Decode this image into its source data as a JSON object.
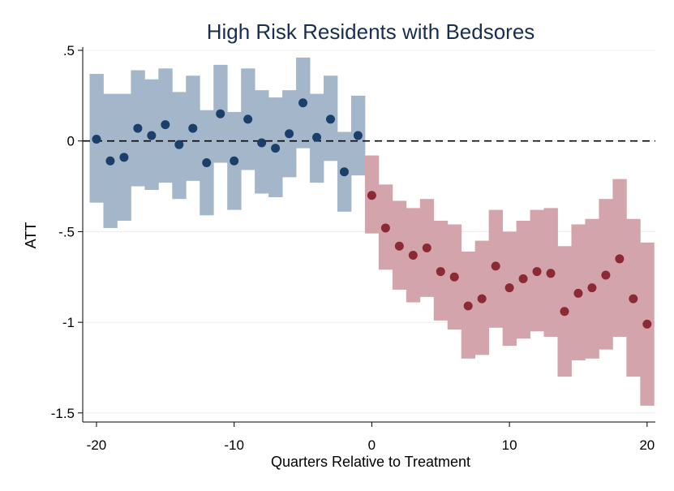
{
  "chart_data": {
    "type": "scatter",
    "title": "High Risk Residents with Bedsores",
    "xlabel": "Quarters Relative to Treatment",
    "ylabel": "ATT",
    "xlim": [
      -21,
      20.6
    ],
    "ylim": [
      -1.55,
      0.5
    ],
    "x_ticks": [
      -20,
      -10,
      0,
      10,
      20
    ],
    "x_tick_labels": [
      "-20",
      "-10",
      "0",
      "10",
      "20"
    ],
    "y_ticks": [
      0.5,
      0,
      -0.5,
      -1,
      -1.5
    ],
    "y_tick_labels": [
      ".5",
      "0",
      "-.5",
      "-1",
      "-1.5"
    ],
    "grid": true,
    "legend": "none",
    "reference_line": {
      "y": 0,
      "style": "dashed"
    },
    "series": [
      {
        "name": "",
        "color": "#1b3f6b",
        "band_color": "#a4b6c9",
        "points": [
          {
            "x": -20,
            "y": 0.01,
            "lo": -0.34,
            "hi": 0.37
          },
          {
            "x": -19,
            "y": -0.11,
            "lo": -0.48,
            "hi": 0.26
          },
          {
            "x": -18,
            "y": -0.09,
            "lo": -0.44,
            "hi": 0.26
          },
          {
            "x": -17,
            "y": 0.07,
            "lo": -0.25,
            "hi": 0.39
          },
          {
            "x": -16,
            "y": 0.03,
            "lo": -0.27,
            "hi": 0.34
          },
          {
            "x": -15,
            "y": 0.09,
            "lo": -0.23,
            "hi": 0.4
          },
          {
            "x": -14,
            "y": -0.02,
            "lo": -0.32,
            "hi": 0.27
          },
          {
            "x": -13,
            "y": 0.07,
            "lo": -0.22,
            "hi": 0.36
          },
          {
            "x": -12,
            "y": -0.12,
            "lo": -0.41,
            "hi": 0.17
          },
          {
            "x": -11,
            "y": 0.15,
            "lo": -0.12,
            "hi": 0.42
          },
          {
            "x": -10,
            "y": -0.11,
            "lo": -0.38,
            "hi": 0.16
          },
          {
            "x": -9,
            "y": 0.12,
            "lo": -0.16,
            "hi": 0.4
          },
          {
            "x": -8,
            "y": -0.01,
            "lo": -0.29,
            "hi": 0.28
          },
          {
            "x": -7,
            "y": -0.04,
            "lo": -0.31,
            "hi": 0.24
          },
          {
            "x": -6,
            "y": 0.04,
            "lo": -0.2,
            "hi": 0.28
          },
          {
            "x": -5,
            "y": 0.21,
            "lo": -0.04,
            "hi": 0.46
          },
          {
            "x": -4,
            "y": 0.02,
            "lo": -0.23,
            "hi": 0.26
          },
          {
            "x": -3,
            "y": 0.12,
            "lo": -0.11,
            "hi": 0.36
          },
          {
            "x": -2,
            "y": -0.17,
            "lo": -0.39,
            "hi": 0.05
          },
          {
            "x": -1,
            "y": 0.03,
            "lo": -0.19,
            "hi": 0.25
          }
        ]
      },
      {
        "name": "",
        "color": "#8b2a35",
        "band_color": "#d3a4ab",
        "points": [
          {
            "x": 0,
            "y": -0.3,
            "lo": -0.51,
            "hi": -0.08
          },
          {
            "x": 1,
            "y": -0.48,
            "lo": -0.71,
            "hi": -0.24
          },
          {
            "x": 2,
            "y": -0.58,
            "lo": -0.82,
            "hi": -0.33
          },
          {
            "x": 3,
            "y": -0.63,
            "lo": -0.89,
            "hi": -0.37
          },
          {
            "x": 4,
            "y": -0.59,
            "lo": -0.86,
            "hi": -0.32
          },
          {
            "x": 5,
            "y": -0.72,
            "lo": -0.99,
            "hi": -0.44
          },
          {
            "x": 6,
            "y": -0.75,
            "lo": -1.04,
            "hi": -0.46
          },
          {
            "x": 7,
            "y": -0.91,
            "lo": -1.2,
            "hi": -0.61
          },
          {
            "x": 8,
            "y": -0.87,
            "lo": -1.18,
            "hi": -0.55
          },
          {
            "x": 9,
            "y": -0.69,
            "lo": -1.03,
            "hi": -0.38
          },
          {
            "x": 10,
            "y": -0.81,
            "lo": -1.13,
            "hi": -0.5
          },
          {
            "x": 11,
            "y": -0.76,
            "lo": -1.09,
            "hi": -0.44
          },
          {
            "x": 12,
            "y": -0.72,
            "lo": -1.05,
            "hi": -0.38
          },
          {
            "x": 13,
            "y": -0.73,
            "lo": -1.08,
            "hi": -0.37
          },
          {
            "x": 14,
            "y": -0.94,
            "lo": -1.3,
            "hi": -0.58
          },
          {
            "x": 15,
            "y": -0.84,
            "lo": -1.21,
            "hi": -0.46
          },
          {
            "x": 16,
            "y": -0.81,
            "lo": -1.2,
            "hi": -0.43
          },
          {
            "x": 17,
            "y": -0.74,
            "lo": -1.15,
            "hi": -0.32
          },
          {
            "x": 18,
            "y": -0.65,
            "lo": -1.08,
            "hi": -0.21
          },
          {
            "x": 19,
            "y": -0.87,
            "lo": -1.3,
            "hi": -0.43
          },
          {
            "x": 20,
            "y": -1.01,
            "lo": -1.46,
            "hi": -0.56
          }
        ]
      }
    ]
  }
}
